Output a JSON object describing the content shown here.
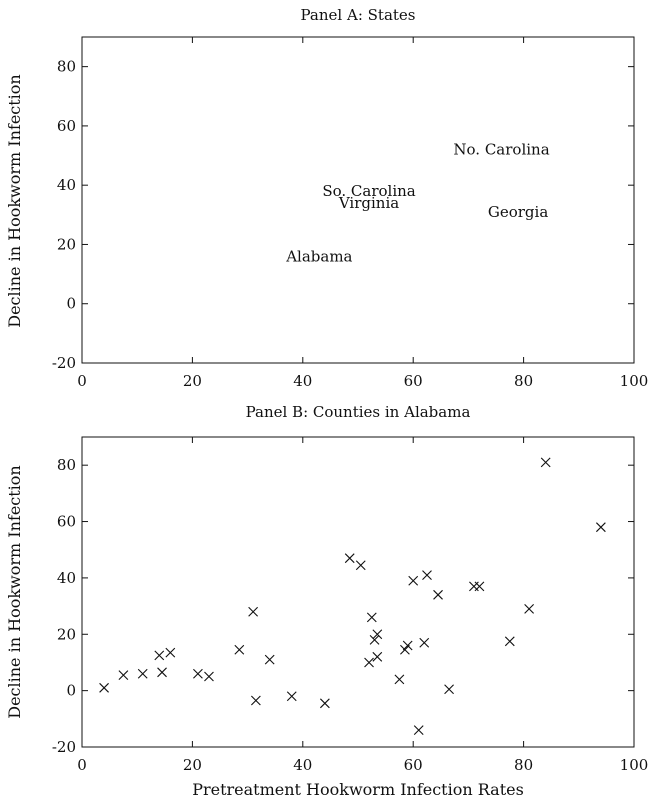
{
  "chart_data": [
    {
      "type": "scatter",
      "title": "Panel A: States",
      "xlabel": "",
      "ylabel": "Decline in Hookworm Infection",
      "xlim": [
        0,
        100
      ],
      "ylim": [
        -20,
        90
      ],
      "xticks": [
        "0",
        "20",
        "40",
        "60",
        "80",
        "100"
      ],
      "yticks": [
        "-20",
        "0",
        "20",
        "40",
        "60",
        "80"
      ],
      "marker": "text",
      "points": [
        {
          "label": "No. Carolina",
          "x": 76,
          "y": 52
        },
        {
          "label": "So. Carolina",
          "x": 52,
          "y": 38
        },
        {
          "label": "Virginia",
          "x": 52,
          "y": 34
        },
        {
          "label": "Georgia",
          "x": 79,
          "y": 31
        },
        {
          "label": "Alabama",
          "x": 43,
          "y": 16
        }
      ]
    },
    {
      "type": "scatter",
      "title": "Panel B: Counties in Alabama",
      "xlabel": "Pretreatment Hookworm Infection Rates",
      "ylabel": "Decline in Hookworm Infection",
      "xlim": [
        0,
        100
      ],
      "ylim": [
        -20,
        90
      ],
      "xticks": [
        "0",
        "20",
        "40",
        "60",
        "80",
        "100"
      ],
      "yticks": [
        "-20",
        "0",
        "20",
        "40",
        "60",
        "80"
      ],
      "marker": "x",
      "points": [
        {
          "x": 4,
          "y": 1
        },
        {
          "x": 7.5,
          "y": 5.5
        },
        {
          "x": 11,
          "y": 6
        },
        {
          "x": 14,
          "y": 12.5
        },
        {
          "x": 14.5,
          "y": 6.5
        },
        {
          "x": 16,
          "y": 13.5
        },
        {
          "x": 21,
          "y": 6
        },
        {
          "x": 23,
          "y": 5
        },
        {
          "x": 28.5,
          "y": 14.5
        },
        {
          "x": 31,
          "y": 28
        },
        {
          "x": 31.5,
          "y": -3.5
        },
        {
          "x": 34,
          "y": 11
        },
        {
          "x": 38,
          "y": -2
        },
        {
          "x": 44,
          "y": -4.5
        },
        {
          "x": 48.5,
          "y": 47
        },
        {
          "x": 50.5,
          "y": 44.5
        },
        {
          "x": 52,
          "y": 10
        },
        {
          "x": 52.5,
          "y": 26
        },
        {
          "x": 53,
          "y": 18
        },
        {
          "x": 53.5,
          "y": 20
        },
        {
          "x": 53.5,
          "y": 12
        },
        {
          "x": 57.5,
          "y": 4
        },
        {
          "x": 58.5,
          "y": 14.5
        },
        {
          "x": 59,
          "y": 16
        },
        {
          "x": 60,
          "y": 39
        },
        {
          "x": 61,
          "y": -14
        },
        {
          "x": 62,
          "y": 17
        },
        {
          "x": 62.5,
          "y": 41
        },
        {
          "x": 64.5,
          "y": 34
        },
        {
          "x": 66.5,
          "y": 0.5
        },
        {
          "x": 71,
          "y": 37
        },
        {
          "x": 72,
          "y": 37
        },
        {
          "x": 77.5,
          "y": 17.5
        },
        {
          "x": 81,
          "y": 29
        },
        {
          "x": 84,
          "y": 81
        },
        {
          "x": 94,
          "y": 58
        }
      ]
    }
  ]
}
